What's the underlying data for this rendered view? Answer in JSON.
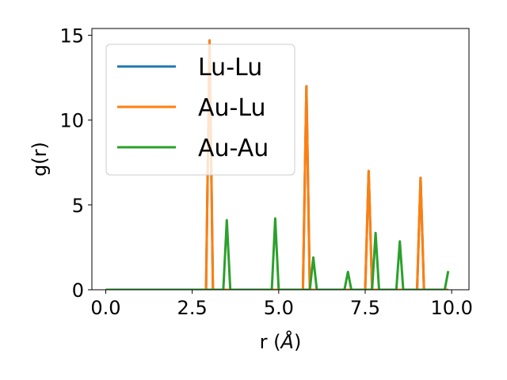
{
  "chart_data": {
    "type": "line",
    "xlabel_main": "r (",
    "xlabel_unit": "Å",
    "xlabel_close": ")",
    "ylabel": "g(r)",
    "xlim": [
      -0.4,
      10.5
    ],
    "ylim": [
      0,
      15.4
    ],
    "xticks": [
      0.0,
      2.5,
      5.0,
      7.5,
      10.0
    ],
    "xtick_labels": [
      "0.0",
      "2.5",
      "5.0",
      "7.5",
      "10.0"
    ],
    "yticks": [
      0,
      5,
      10,
      15
    ],
    "ytick_labels": [
      "0",
      "5",
      "10",
      "15"
    ],
    "grid": false,
    "legend_position": "upper-left",
    "series": [
      {
        "name": "Lu-Lu",
        "color": "#1f77b4",
        "x": [
          0.0,
          2.9,
          3.0,
          3.1,
          5.7,
          5.8,
          5.9,
          7.5,
          7.6,
          7.7,
          9.0,
          9.1,
          9.2,
          9.9
        ],
        "y": [
          0,
          0,
          14.7,
          0,
          0,
          12.0,
          0,
          0,
          7.0,
          0,
          0,
          6.6,
          0,
          0
        ]
      },
      {
        "name": "Au-Lu",
        "color": "#ff7f0e",
        "x": [
          0.0,
          2.9,
          3.0,
          3.1,
          5.7,
          5.8,
          5.9,
          7.5,
          7.6,
          7.7,
          9.0,
          9.1,
          9.2,
          9.9
        ],
        "y": [
          0,
          0,
          14.7,
          0,
          0,
          12.0,
          0,
          0,
          7.0,
          0,
          0,
          6.6,
          0,
          0
        ]
      },
      {
        "name": "Au-Au",
        "color": "#2ca02c",
        "x": [
          0.0,
          3.4,
          3.5,
          3.6,
          4.8,
          4.9,
          5.0,
          5.9,
          6.0,
          6.1,
          6.9,
          7.0,
          7.1,
          7.7,
          7.8,
          7.9,
          8.4,
          8.5,
          8.6,
          9.8,
          9.9
        ],
        "y": [
          0,
          0,
          4.1,
          0,
          0,
          4.2,
          0,
          0,
          1.9,
          0,
          0,
          1.05,
          0,
          0,
          3.35,
          0,
          0,
          2.85,
          0,
          0,
          1.1
        ]
      }
    ]
  }
}
